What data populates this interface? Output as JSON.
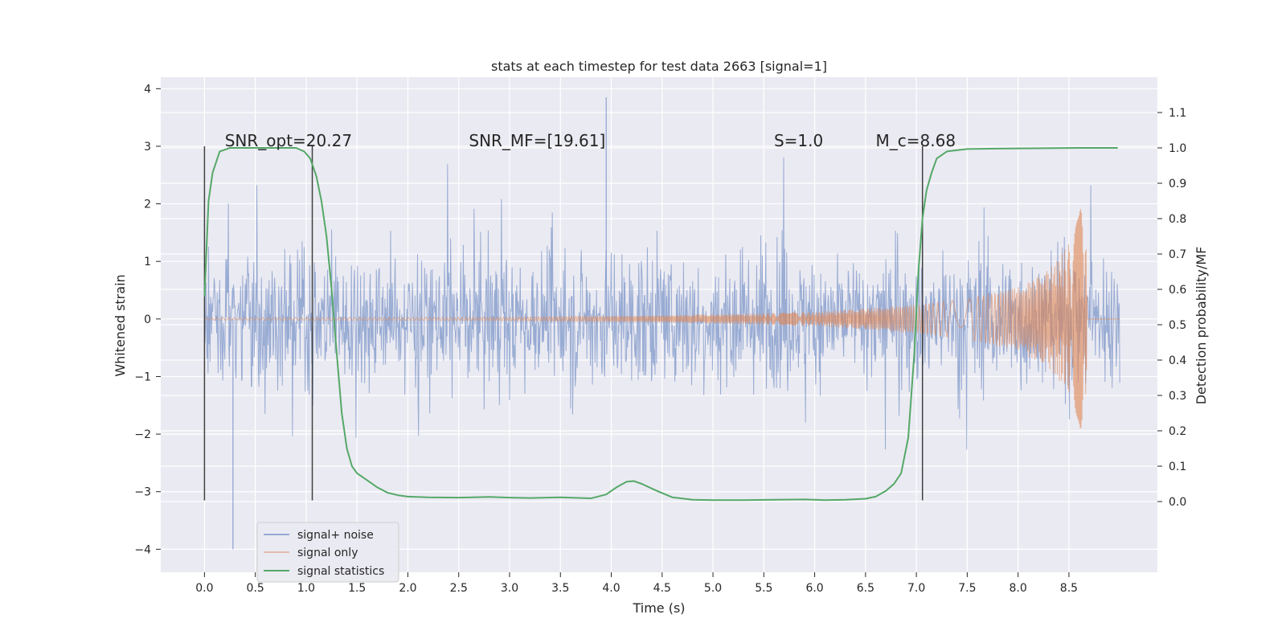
{
  "chart_data": {
    "type": "line",
    "title": "stats at each timestep for test data 2663 [signal=1]",
    "xlabel": "Time (s)",
    "ylabel_left": "Whitened strain",
    "ylabel_right": "Detection probability/MF",
    "xlim": [
      -0.43,
      9.37
    ],
    "ylim_left": [
      -4.4,
      4.2
    ],
    "ylim_right": [
      -0.2,
      1.2
    ],
    "x_ticks": [
      "0.0",
      "0.5",
      "1.0",
      "1.5",
      "2.0",
      "2.5",
      "3.0",
      "3.5",
      "4.0",
      "4.5",
      "5.0",
      "5.5",
      "6.0",
      "6.5",
      "7.0",
      "7.5",
      "8.0",
      "8.5"
    ],
    "y_left_ticks": [
      "−4",
      "−3",
      "−2",
      "−1",
      "0",
      "1",
      "2",
      "3",
      "4"
    ],
    "y_right_ticks": [
      "0.0",
      "0.1",
      "0.2",
      "0.3",
      "0.4",
      "0.5",
      "0.6",
      "0.7",
      "0.8",
      "0.9",
      "1.0",
      "1.1"
    ],
    "grid": true,
    "annotations": [
      {
        "text": "SNR_opt=20.27",
        "x": 0.2
      },
      {
        "text": "SNR_MF=[19.61]",
        "x": 2.6
      },
      {
        "text": "S=1.0",
        "x": 5.6
      },
      {
        "text": "M_c=8.68",
        "x": 6.6
      }
    ],
    "vertical_markers": [
      0.0,
      1.06,
      7.06
    ],
    "legend": {
      "placement": "lower-left",
      "entries": [
        "signal+ noise",
        "signal only",
        "signal statistics"
      ]
    },
    "colors": {
      "noise": "#7c95c8",
      "signal": "#dd8452",
      "statistics": "#55a868",
      "background": "#eaeaf2",
      "grid": "#ffffff"
    },
    "series": [
      {
        "name": "signal statistics",
        "axis": "right",
        "x": [
          0.0,
          0.04,
          0.08,
          0.15,
          0.25,
          0.4,
          0.6,
          0.8,
          0.9,
          0.98,
          1.04,
          1.1,
          1.15,
          1.2,
          1.25,
          1.3,
          1.35,
          1.4,
          1.45,
          1.5,
          1.6,
          1.7,
          1.8,
          1.9,
          2.0,
          2.2,
          2.5,
          2.8,
          3.0,
          3.2,
          3.5,
          3.8,
          3.95,
          4.05,
          4.15,
          4.22,
          4.3,
          4.45,
          4.6,
          4.8,
          5.0,
          5.3,
          5.6,
          5.9,
          6.1,
          6.3,
          6.5,
          6.6,
          6.7,
          6.78,
          6.85,
          6.92,
          6.98,
          7.02,
          7.06,
          7.1,
          7.15,
          7.2,
          7.3,
          7.5,
          7.8,
          8.2,
          8.6,
          8.8,
          8.98
        ],
        "values": [
          0.58,
          0.85,
          0.93,
          0.99,
          1.0,
          1.0,
          1.0,
          1.0,
          1.0,
          0.99,
          0.97,
          0.92,
          0.85,
          0.75,
          0.6,
          0.42,
          0.25,
          0.15,
          0.1,
          0.08,
          0.06,
          0.04,
          0.025,
          0.018,
          0.014,
          0.012,
          0.011,
          0.013,
          0.011,
          0.01,
          0.012,
          0.009,
          0.02,
          0.04,
          0.056,
          0.058,
          0.05,
          0.03,
          0.012,
          0.005,
          0.004,
          0.004,
          0.005,
          0.006,
          0.004,
          0.005,
          0.008,
          0.014,
          0.03,
          0.05,
          0.08,
          0.18,
          0.42,
          0.65,
          0.8,
          0.88,
          0.93,
          0.97,
          0.99,
          0.997,
          0.998,
          0.999,
          1.0,
          1.0,
          1.0
        ]
      },
      {
        "name": "signal only",
        "axis": "left",
        "description_envelope": [
          {
            "x": 0.0,
            "amp": 0.02
          },
          {
            "x": 3.0,
            "amp": 0.03
          },
          {
            "x": 4.5,
            "amp": 0.06
          },
          {
            "x": 6.0,
            "amp": 0.12
          },
          {
            "x": 7.0,
            "amp": 0.25
          },
          {
            "x": 7.5,
            "amp": 0.35
          },
          {
            "x": 8.0,
            "amp": 0.55
          },
          {
            "x": 8.3,
            "amp": 0.85
          },
          {
            "x": 8.5,
            "amp": 1.3
          },
          {
            "x": 8.6,
            "amp": 1.8
          },
          {
            "x": 8.66,
            "amp": 2.6
          },
          {
            "x": 8.68,
            "amp": 0.0
          },
          {
            "x": 9.0,
            "amp": 0.0
          }
        ]
      },
      {
        "name": "signal+ noise",
        "axis": "left",
        "x_range": [
          0.0,
          9.0
        ],
        "typical_band": [
          -1.6,
          1.6
        ],
        "extremes": {
          "max": 3.85,
          "min": -4.0
        }
      }
    ]
  }
}
